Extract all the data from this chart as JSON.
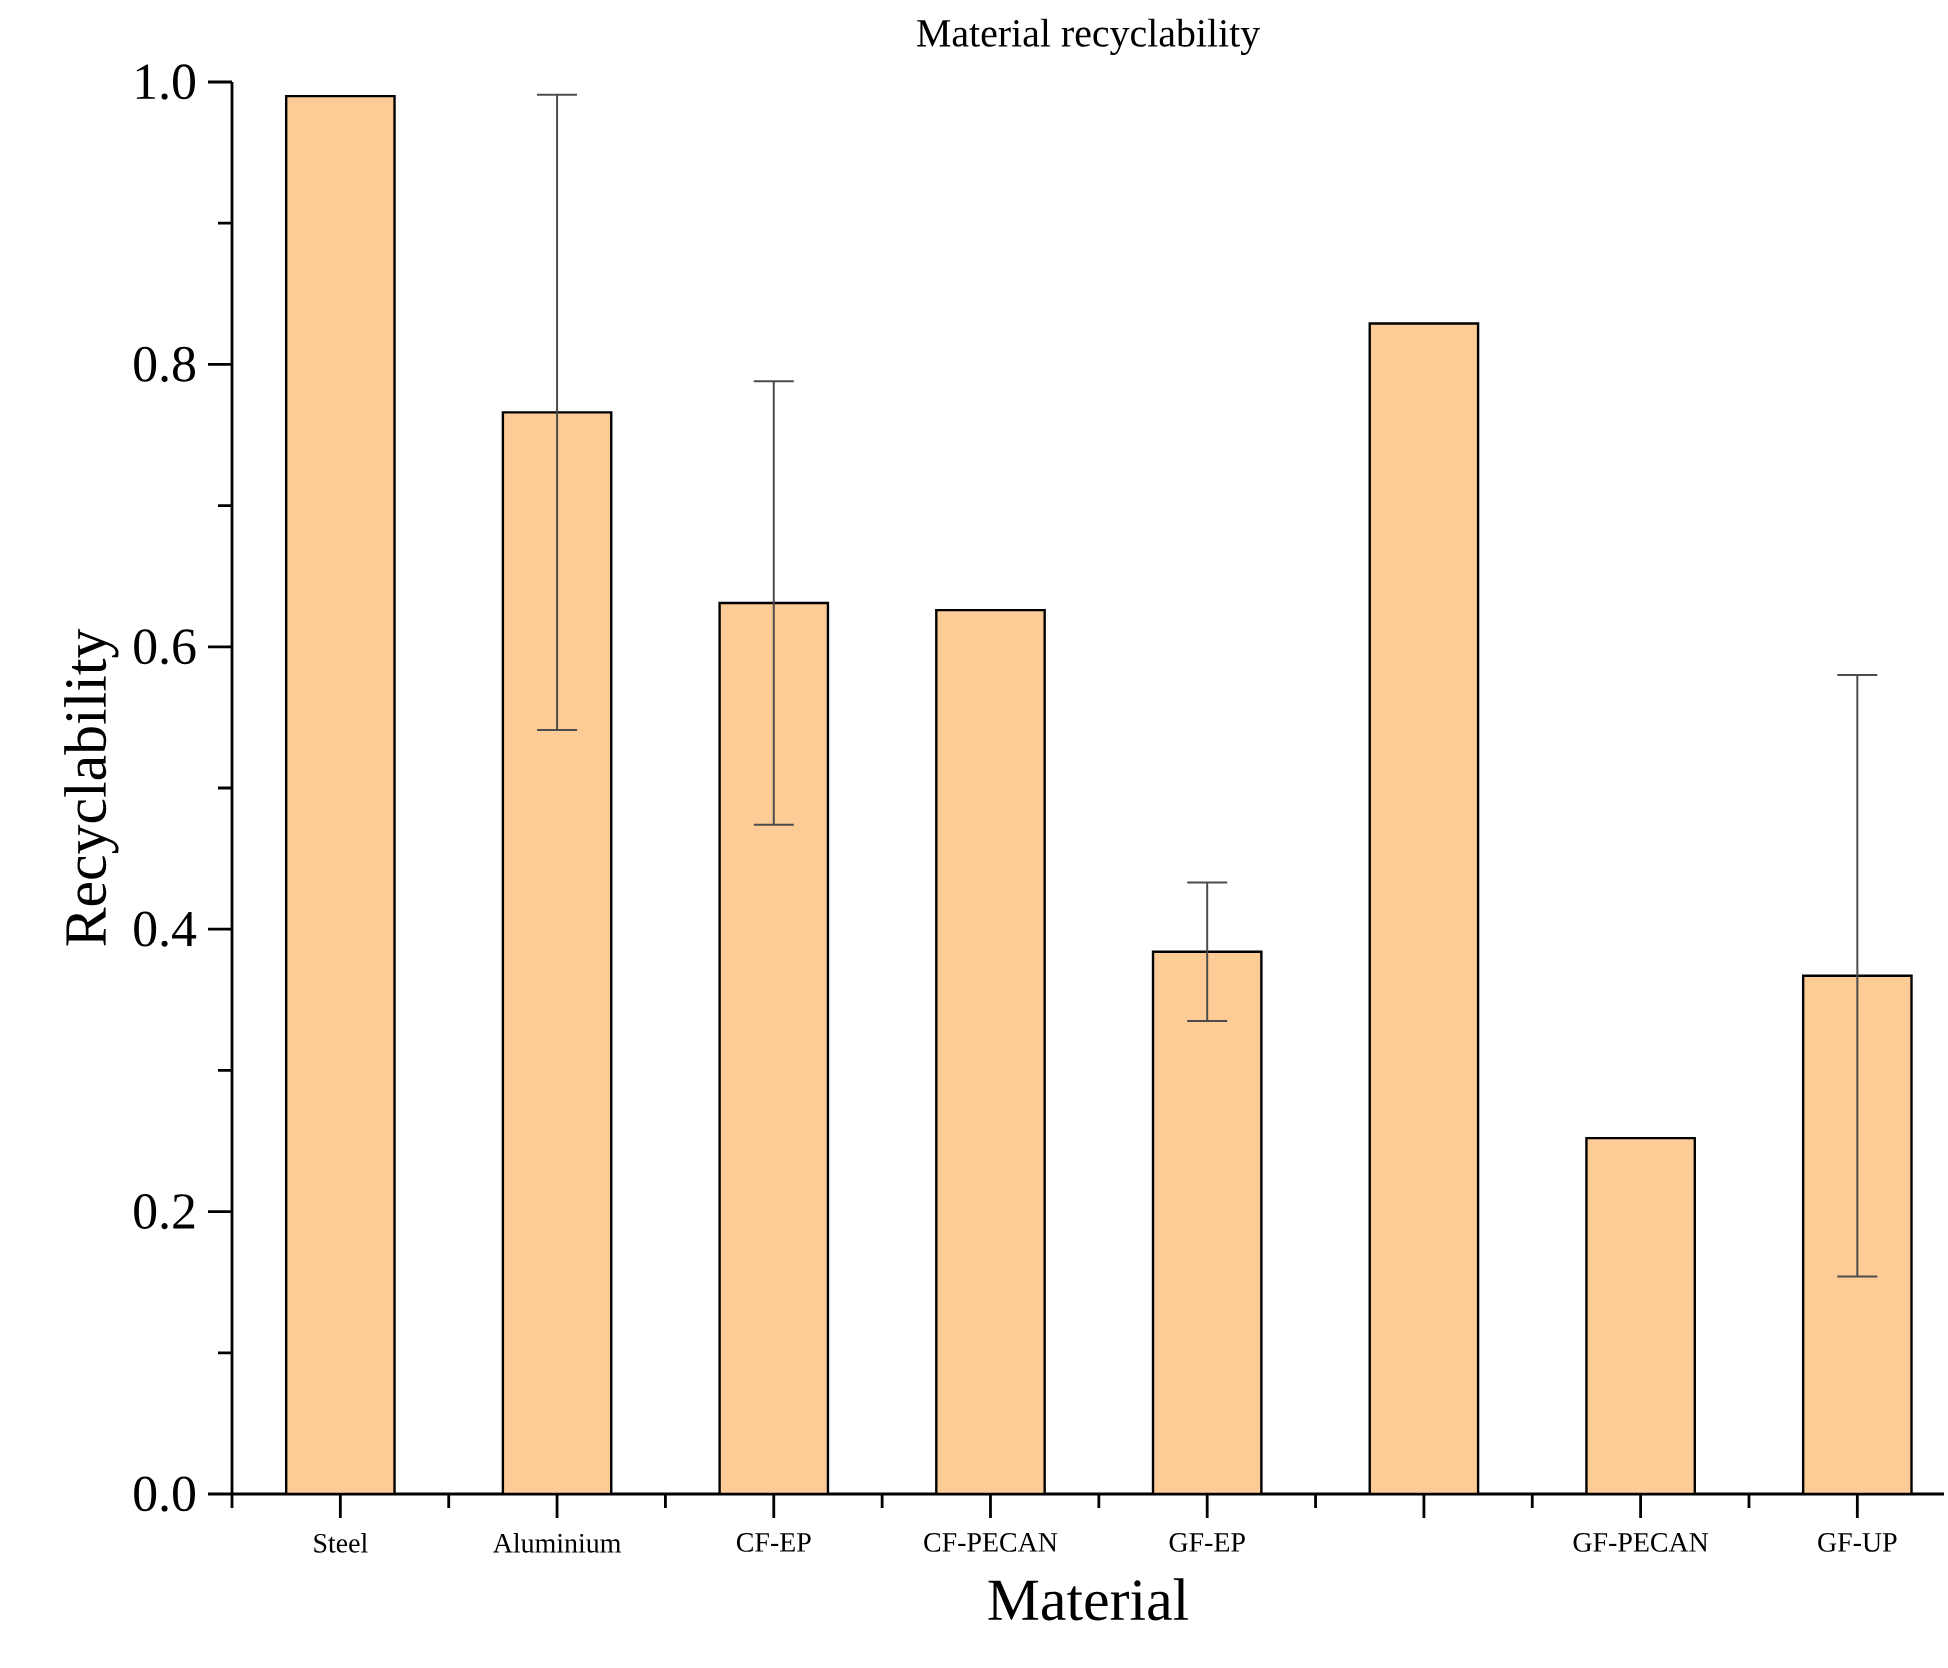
{
  "chart_data": {
    "type": "bar",
    "title": "Material recyclability",
    "xlabel": "Material",
    "ylabel": "Recyclability",
    "categories": [
      "Steel",
      "Aluminium",
      "CF-EP",
      "CF-PECAN",
      "GF-EP",
      null,
      "GF-PECAN",
      "GF-UP"
    ],
    "values": [
      0.99,
      0.766,
      0.631,
      0.626,
      0.384,
      0.829,
      0.252,
      0.367
    ],
    "errors": [
      null,
      0.225,
      0.157,
      null,
      0.049,
      null,
      null,
      0.213
    ],
    "color": "#fdcc96",
    "ylim": [
      0,
      1.0
    ],
    "yticks": [
      {
        "value": 0,
        "label": "0.0"
      },
      {
        "value": 0.1,
        "label": null
      },
      0.2,
      {
        "value": 0.3,
        "label": null
      },
      0.4,
      {
        "value": 0.5,
        "label": null
      },
      0.6,
      {
        "value": 0.7,
        "label": null
      },
      0.8,
      {
        "value": 0.9,
        "label": null
      },
      {
        "value": 1.0,
        "label": "1.0"
      }
    ],
    "grid": false
  }
}
